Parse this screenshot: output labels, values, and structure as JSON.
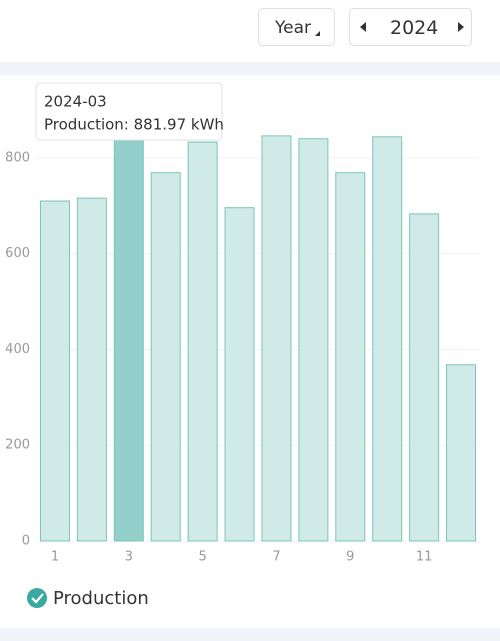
{
  "header": {
    "period": "Year",
    "year": "2024"
  },
  "chart_data": {
    "type": "bar",
    "categories": [
      1,
      null,
      3,
      null,
      5,
      null,
      7,
      null,
      9,
      null,
      11,
      null
    ],
    "series": [
      {
        "name": "Production",
        "color": "#d0ebe7",
        "values": [
          710,
          716,
          881.97,
          769,
          833,
          696,
          846,
          840,
          769,
          844,
          683,
          368
        ]
      }
    ],
    "ylim": [
      0,
      900
    ],
    "yticks": [
      0,
      200,
      400,
      600,
      800
    ],
    "grid": true,
    "tooltip": {
      "index": 2,
      "title": "2024-03",
      "text": "Production: 881.97 kWh",
      "color": "#93cfca"
    }
  }
}
